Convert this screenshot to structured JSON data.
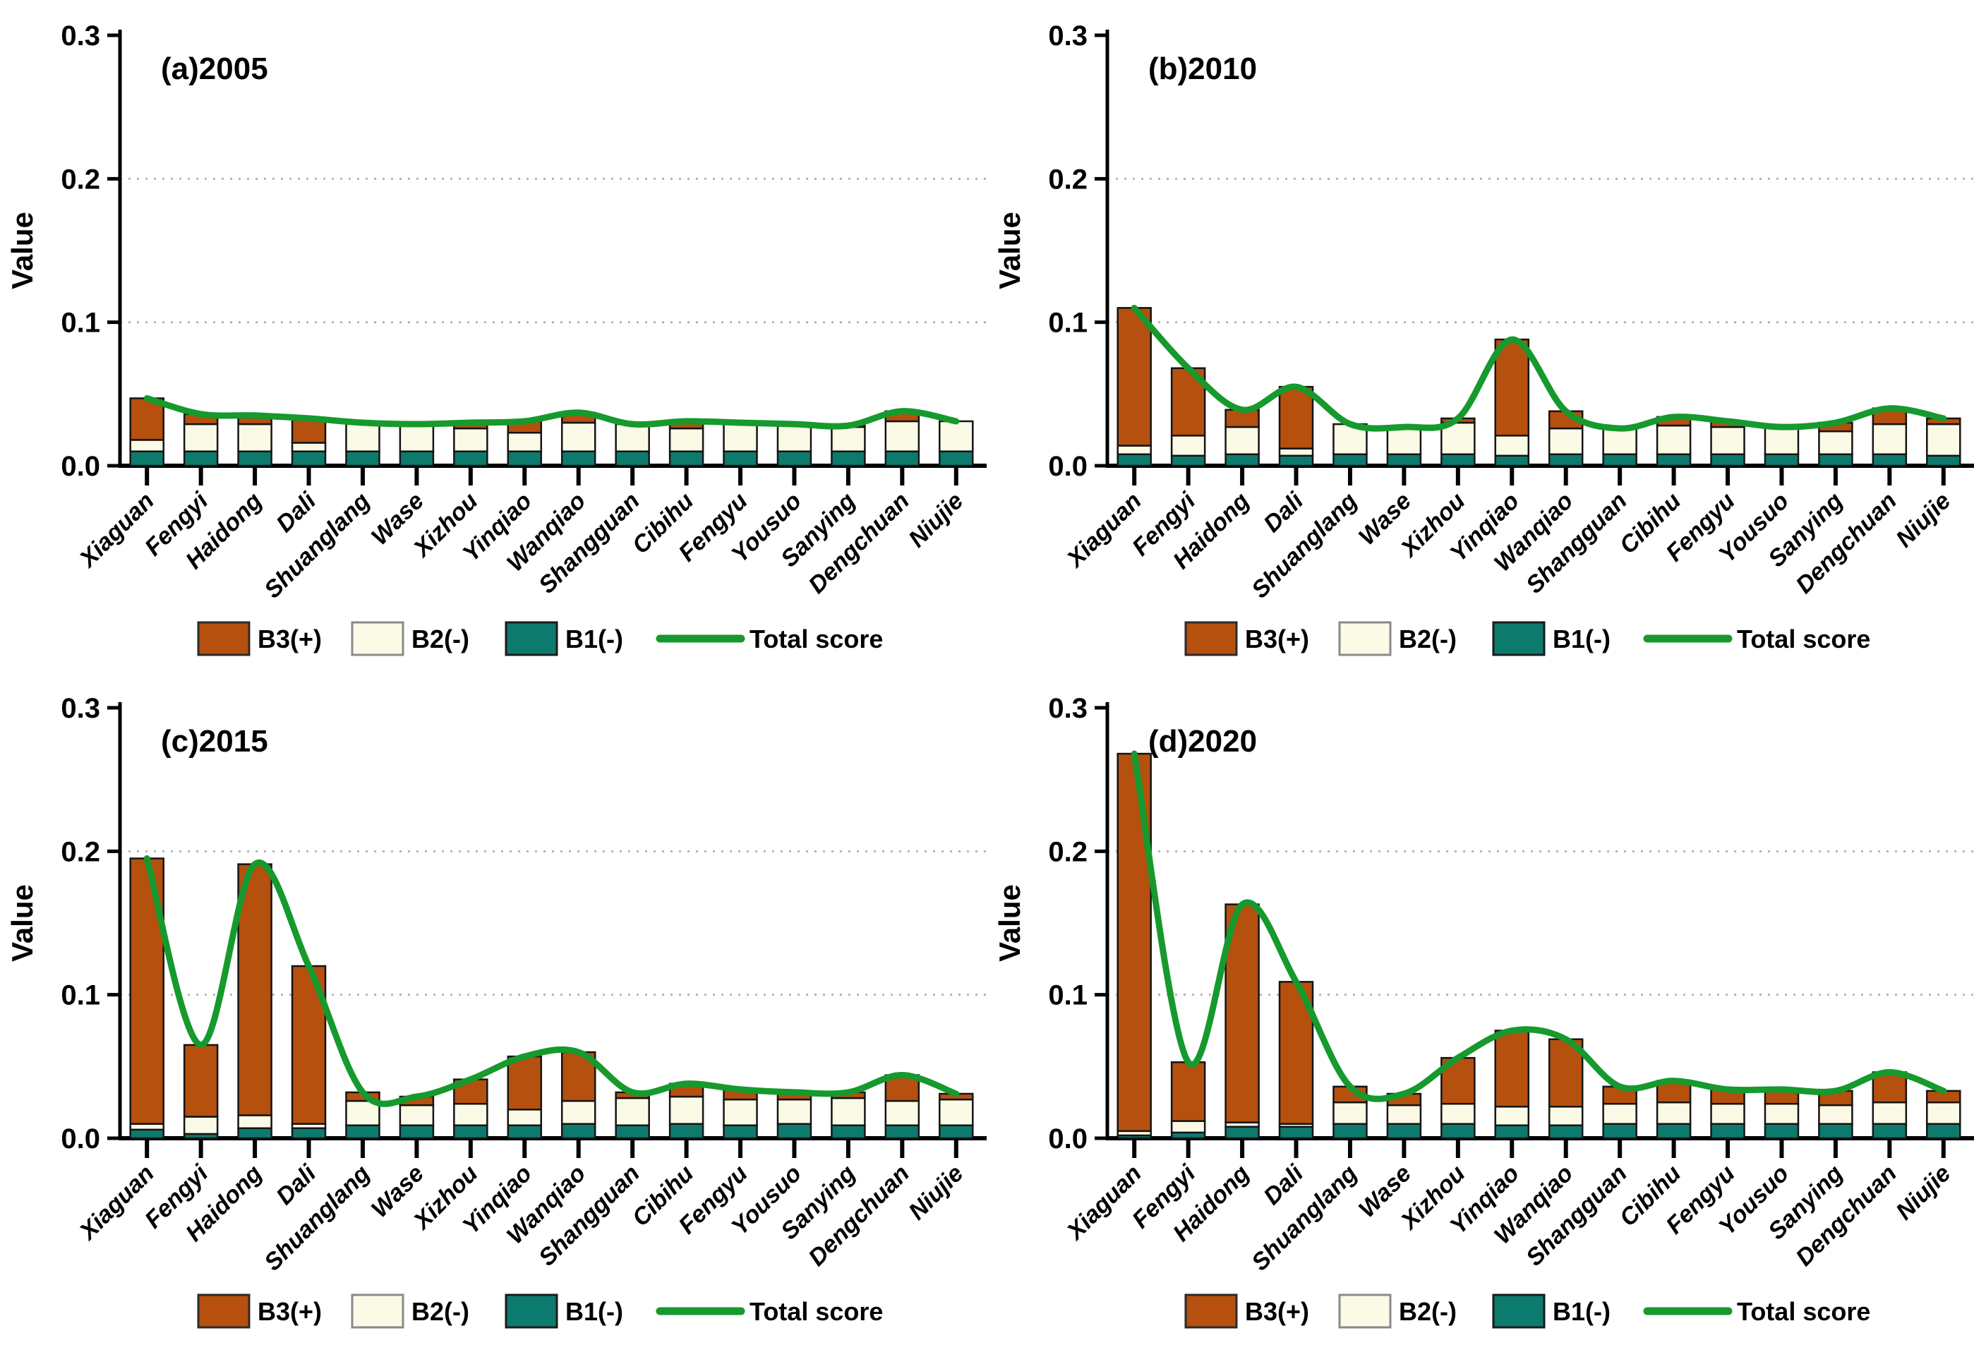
{
  "figure": {
    "background": "#ffffff",
    "text_color": "#000000",
    "grid_color": "#b5b5b5",
    "axis_color": "#000000"
  },
  "chart_data": {
    "shared": {
      "type": "bar",
      "subtype": "stacked-bars-with-total-line",
      "categories": [
        "Xiaguan",
        "Fengyi",
        "Haidong",
        "Dali",
        "Shuanglang",
        "Wase",
        "Xizhou",
        "Yinqiao",
        "Wanqiao",
        "Shangguan",
        "Cibihu",
        "Fengyu",
        "Yousuo",
        "Sanying",
        "Dengchuan",
        "Niujie"
      ],
      "ylabel": "Value",
      "ylim": [
        0,
        0.3
      ],
      "yticks": [
        "0.0",
        "0.1",
        "0.2",
        "0.3"
      ],
      "ytick_values": [
        0,
        0.1,
        0.2,
        0.3
      ],
      "grid_levels": [
        0.1,
        0.2
      ],
      "grid_style": "dotted",
      "legend_position": "bottom-center",
      "legend": [
        {
          "label": "B3(+)",
          "type": "box",
          "color": "#b5500f",
          "border": "#2a2a2a"
        },
        {
          "label": "B2(-)",
          "type": "box",
          "color": "#fbfae6",
          "border": "#8a8a8a"
        },
        {
          "label": "B1(-)",
          "type": "box",
          "color": "#0d7a6e",
          "border": "#1a1a1a"
        },
        {
          "label": "Total score",
          "type": "line",
          "color": "#16992d"
        }
      ],
      "bar_border_color": "#141414",
      "line_color": "#16992d",
      "series_colors": {
        "B1": "#0d7a6e",
        "B2": "#fbfae6",
        "B3": "#b5500f"
      }
    },
    "panels": [
      {
        "id": "a",
        "title": "(a)2005",
        "series": [
          {
            "name": "B1(-)",
            "values": [
              0.01,
              0.01,
              0.01,
              0.01,
              0.01,
              0.01,
              0.01,
              0.01,
              0.01,
              0.01,
              0.01,
              0.01,
              0.01,
              0.01,
              0.01,
              0.01
            ]
          },
          {
            "name": "B2(-)",
            "values": [
              0.008,
              0.019,
              0.019,
              0.006,
              0.02,
              0.019,
              0.016,
              0.013,
              0.02,
              0.019,
              0.016,
              0.02,
              0.019,
              0.017,
              0.021,
              0.021
            ]
          },
          {
            "name": "B3(+)",
            "values": [
              0.029,
              0.007,
              0.006,
              0.017,
              0.0,
              0.0,
              0.004,
              0.008,
              0.007,
              0.0,
              0.005,
              0.0,
              0.0,
              0.001,
              0.007,
              0.0
            ]
          }
        ],
        "line": {
          "name": "Total score",
          "values": [
            0.047,
            0.036,
            0.035,
            0.033,
            0.03,
            0.029,
            0.03,
            0.031,
            0.037,
            0.029,
            0.031,
            0.03,
            0.029,
            0.028,
            0.038,
            0.031
          ]
        }
      },
      {
        "id": "b",
        "title": "(b)2010",
        "series": [
          {
            "name": "B1(-)",
            "values": [
              0.008,
              0.007,
              0.008,
              0.007,
              0.008,
              0.008,
              0.008,
              0.007,
              0.008,
              0.008,
              0.008,
              0.008,
              0.008,
              0.008,
              0.008,
              0.007
            ]
          },
          {
            "name": "B2(-)",
            "values": [
              0.006,
              0.014,
              0.019,
              0.005,
              0.021,
              0.019,
              0.022,
              0.014,
              0.018,
              0.018,
              0.02,
              0.019,
              0.019,
              0.016,
              0.021,
              0.022
            ]
          },
          {
            "name": "B3(+)",
            "values": [
              0.096,
              0.047,
              0.012,
              0.043,
              0.0,
              0.0,
              0.003,
              0.067,
              0.012,
              0.0,
              0.006,
              0.004,
              0.0,
              0.006,
              0.011,
              0.004
            ]
          }
        ],
        "line": {
          "name": "Total score",
          "values": [
            0.11,
            0.068,
            0.039,
            0.055,
            0.029,
            0.027,
            0.033,
            0.088,
            0.038,
            0.026,
            0.034,
            0.031,
            0.027,
            0.03,
            0.04,
            0.033
          ]
        }
      },
      {
        "id": "c",
        "title": "(c)2015",
        "series": [
          {
            "name": "B1(-)",
            "values": [
              0.006,
              0.003,
              0.007,
              0.007,
              0.009,
              0.009,
              0.009,
              0.009,
              0.01,
              0.009,
              0.01,
              0.009,
              0.01,
              0.009,
              0.009,
              0.009
            ]
          },
          {
            "name": "B2(-)",
            "values": [
              0.004,
              0.012,
              0.009,
              0.003,
              0.017,
              0.014,
              0.015,
              0.011,
              0.016,
              0.019,
              0.019,
              0.018,
              0.017,
              0.019,
              0.017,
              0.018
            ]
          },
          {
            "name": "B3(+)",
            "values": [
              0.185,
              0.05,
              0.175,
              0.11,
              0.006,
              0.006,
              0.017,
              0.037,
              0.034,
              0.004,
              0.009,
              0.007,
              0.005,
              0.004,
              0.018,
              0.004
            ]
          }
        ],
        "line": {
          "name": "Total score",
          "values": [
            0.195,
            0.065,
            0.191,
            0.12,
            0.032,
            0.029,
            0.041,
            0.057,
            0.06,
            0.032,
            0.038,
            0.034,
            0.032,
            0.032,
            0.044,
            0.031
          ]
        }
      },
      {
        "id": "d",
        "title": "(d)2020",
        "series": [
          {
            "name": "B1(-)",
            "values": [
              0.002,
              0.004,
              0.008,
              0.008,
              0.01,
              0.01,
              0.01,
              0.009,
              0.009,
              0.01,
              0.01,
              0.01,
              0.01,
              0.01,
              0.01,
              0.01
            ]
          },
          {
            "name": "B2(-)",
            "values": [
              0.003,
              0.008,
              0.003,
              0.002,
              0.015,
              0.013,
              0.014,
              0.013,
              0.013,
              0.014,
              0.015,
              0.014,
              0.014,
              0.013,
              0.015,
              0.015
            ]
          },
          {
            "name": "B3(+)",
            "values": [
              0.263,
              0.041,
              0.152,
              0.099,
              0.011,
              0.008,
              0.032,
              0.053,
              0.047,
              0.012,
              0.015,
              0.01,
              0.01,
              0.01,
              0.021,
              0.008
            ]
          }
        ],
        "line": {
          "name": "Total score",
          "values": [
            0.268,
            0.053,
            0.163,
            0.109,
            0.036,
            0.031,
            0.056,
            0.075,
            0.069,
            0.036,
            0.04,
            0.034,
            0.034,
            0.033,
            0.046,
            0.033
          ]
        }
      }
    ]
  }
}
